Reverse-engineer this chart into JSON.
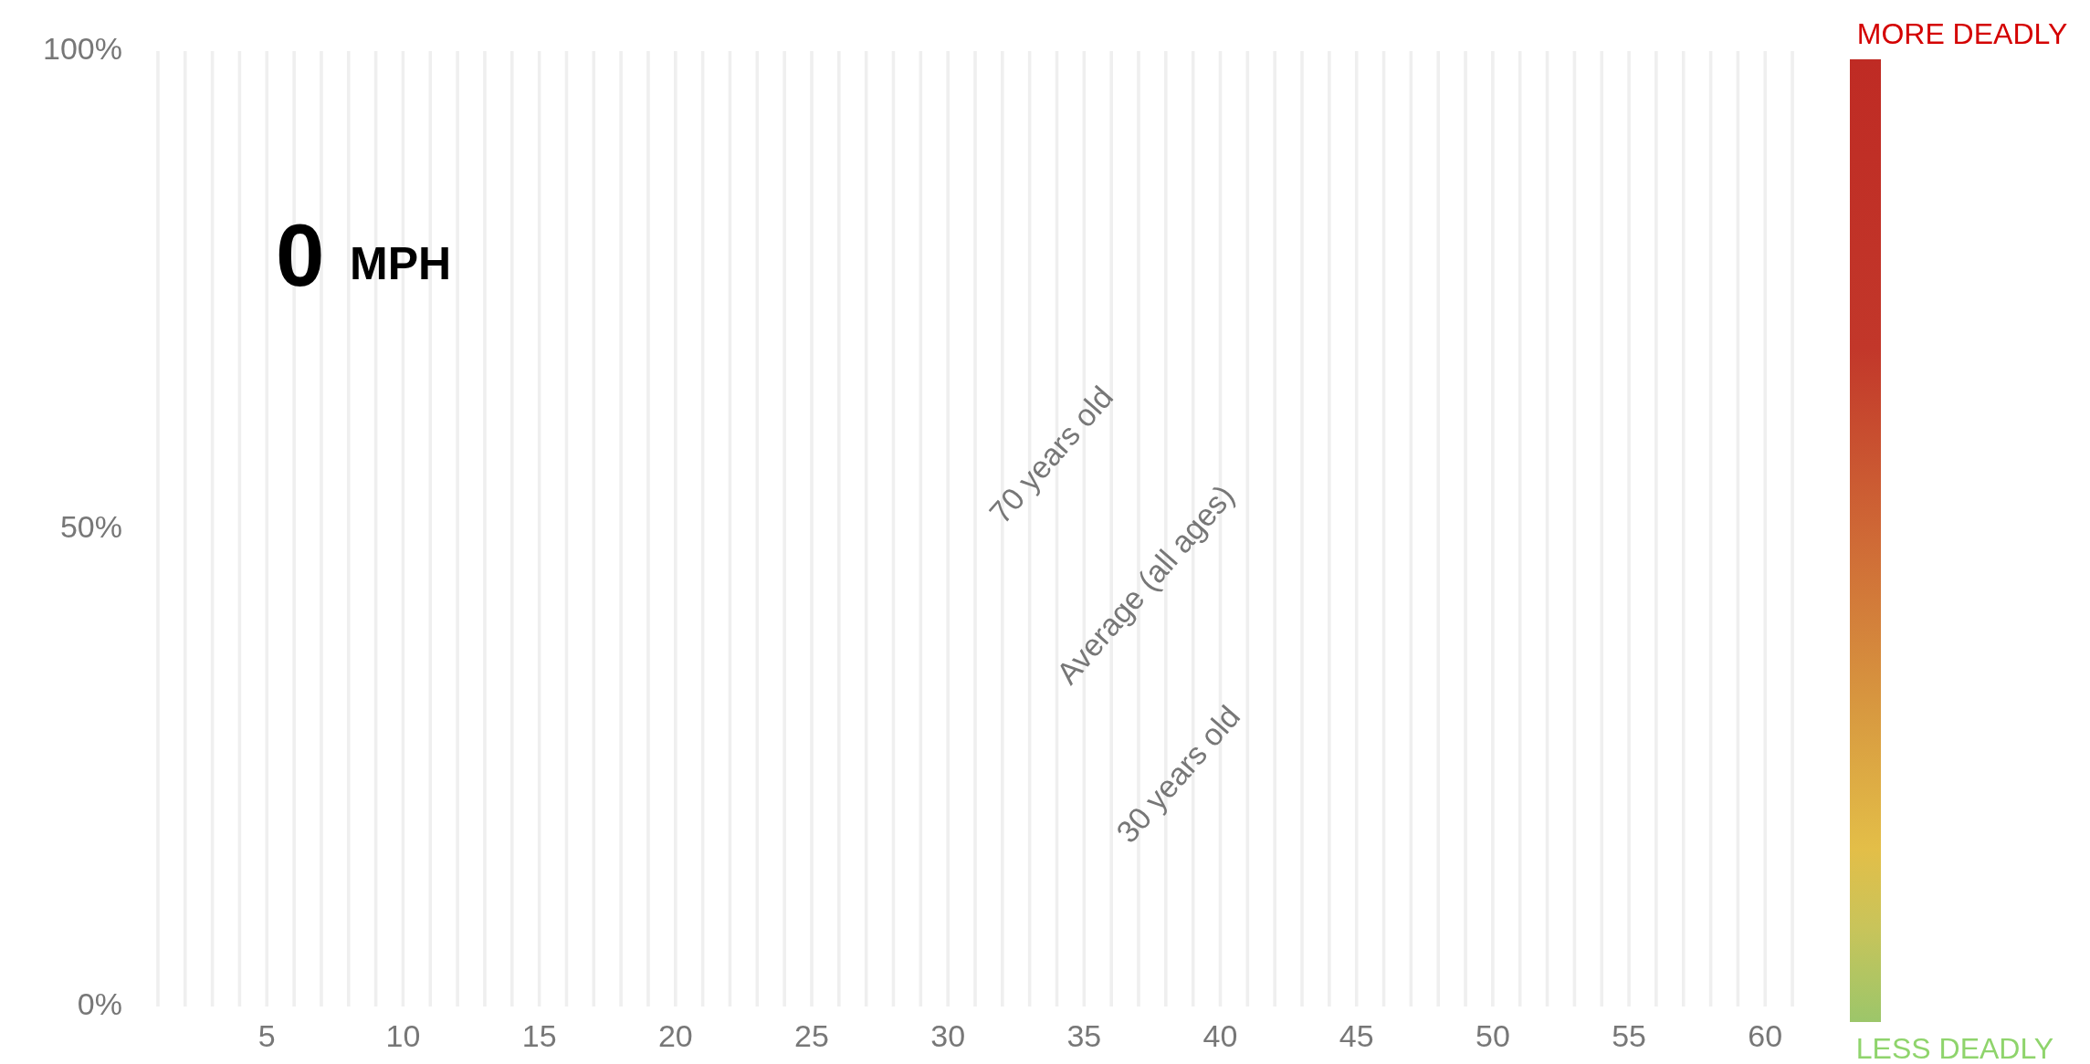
{
  "chart_data": {
    "type": "bar",
    "categories": [
      null,
      null,
      null,
      null,
      "5",
      null,
      null,
      null,
      null,
      "10",
      null,
      null,
      null,
      null,
      "15",
      null,
      null,
      null,
      null,
      "20",
      null,
      null,
      null,
      null,
      "25",
      null,
      null,
      null,
      null,
      "30",
      null,
      null,
      null,
      null,
      "35",
      null,
      null,
      null,
      null,
      "40",
      null,
      null,
      null,
      null,
      "45",
      null,
      null,
      null,
      null,
      "50",
      null,
      null,
      null,
      null,
      "55",
      null,
      null,
      null,
      null,
      "60",
      null
    ],
    "values": [
      100,
      100,
      100,
      100,
      100,
      100,
      100,
      100,
      100,
      100,
      100,
      100,
      100,
      100,
      100,
      100,
      100,
      100,
      100,
      100,
      100,
      100,
      100,
      100,
      100,
      100,
      100,
      100,
      100,
      100,
      100,
      100,
      100,
      100,
      100,
      100,
      100,
      100,
      100,
      100,
      100,
      100,
      100,
      100,
      100,
      100,
      100,
      100,
      100,
      100,
      100,
      100,
      100,
      100,
      100,
      100,
      100,
      100,
      100,
      100,
      100
    ],
    "color": "#efefef",
    "ylim": [
      0,
      100
    ],
    "yticks": [
      {
        "value": 0,
        "label": "0%"
      },
      {
        "value": 50,
        "label": "50%"
      },
      {
        "value": 100,
        "label": "100%"
      }
    ],
    "legend": false,
    "annotations": [
      "0",
      "MPH",
      "70 years old",
      "Average (all ages)",
      "30 years old",
      "MORE DEADLY",
      "LESS DEADLY"
    ]
  }
}
